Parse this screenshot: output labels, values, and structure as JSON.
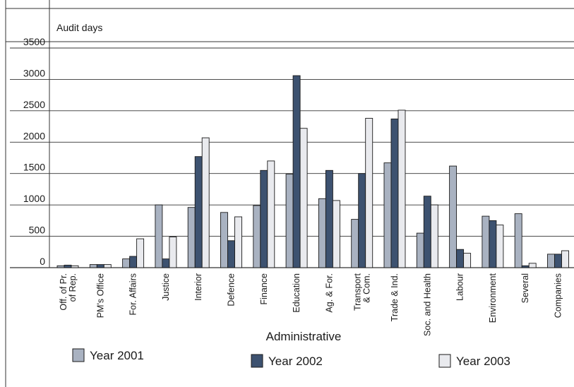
{
  "chart_data": {
    "type": "bar",
    "ylabel": "Audit days",
    "xlabel": "Administrative",
    "ylim": [
      0,
      3500
    ],
    "yticks": [
      0,
      500,
      1000,
      1500,
      2000,
      2500,
      3000,
      3500
    ],
    "grid": true,
    "legend_position": "bottom",
    "categories": [
      [
        "Off. of Pr.",
        "of Rep."
      ],
      [
        "PM's Office"
      ],
      [
        "For. Affairs"
      ],
      [
        "Justice"
      ],
      [
        "Interior"
      ],
      [
        "Defence"
      ],
      [
        "Finance"
      ],
      [
        "Education"
      ],
      [
        "Ag. & For."
      ],
      [
        "Transport",
        "& Com."
      ],
      [
        "Trade & Ind."
      ],
      [
        "Soc. and Health"
      ],
      [
        "Labour"
      ],
      [
        "Environment"
      ],
      [
        "Several"
      ],
      [
        "Companies"
      ]
    ],
    "series": [
      {
        "name": "Year 2001",
        "color": "#a9b2c1",
        "values": [
          30,
          50,
          140,
          1000,
          960,
          880,
          990,
          1490,
          1100,
          770,
          1670,
          550,
          1620,
          820,
          860,
          215
        ]
      },
      {
        "name": "Year 2002",
        "color": "#3d5270",
        "values": [
          40,
          50,
          180,
          140,
          1770,
          430,
          1550,
          3060,
          1550,
          1500,
          2370,
          1140,
          290,
          750,
          30,
          215
        ]
      },
      {
        "name": "Year 2003",
        "color": "#e9eaee",
        "values": [
          30,
          50,
          460,
          490,
          2070,
          810,
          1700,
          2220,
          1070,
          2380,
          2510,
          1000,
          230,
          680,
          70,
          270
        ]
      }
    ]
  }
}
